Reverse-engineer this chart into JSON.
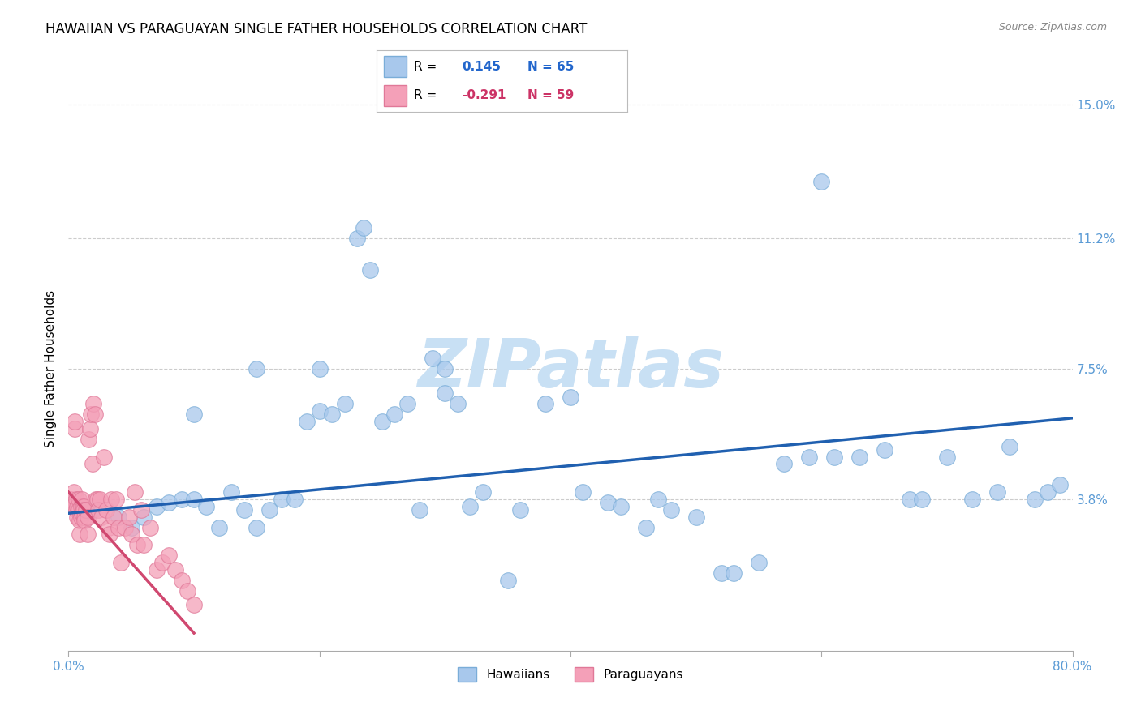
{
  "title": "HAWAIIAN VS PARAGUAYAN SINGLE FATHER HOUSEHOLDS CORRELATION CHART",
  "source": "Source: ZipAtlas.com",
  "ylabel": "Single Father Households",
  "xlim": [
    0.0,
    0.8
  ],
  "ylim": [
    -0.005,
    0.155
  ],
  "xticks": [
    0.0,
    0.2,
    0.4,
    0.6,
    0.8
  ],
  "xticklabels": [
    "0.0%",
    "",
    "",
    "",
    "80.0%"
  ],
  "yticks": [
    0.038,
    0.075,
    0.112,
    0.15
  ],
  "yticklabels": [
    "3.8%",
    "7.5%",
    "11.2%",
    "15.0%"
  ],
  "blue_color": "#A8C8EC",
  "blue_edge_color": "#7AADD8",
  "blue_line_color": "#2060B0",
  "pink_color": "#F4A0B8",
  "pink_edge_color": "#E07898",
  "pink_line_color": "#D04870",
  "background_color": "#FFFFFF",
  "grid_color": "#CCCCCC",
  "title_fontsize": 12,
  "source_fontsize": 9,
  "axis_label_fontsize": 11,
  "tick_fontsize": 11,
  "legend_fontsize": 11,
  "watermark_text": "ZIPatlas",
  "watermark_color": "#C8E0F4",
  "watermark_fontsize": 60,
  "hawaiian_x": [
    0.02,
    0.04,
    0.05,
    0.06,
    0.07,
    0.08,
    0.09,
    0.1,
    0.11,
    0.12,
    0.13,
    0.14,
    0.15,
    0.16,
    0.17,
    0.18,
    0.19,
    0.2,
    0.21,
    0.22,
    0.23,
    0.235,
    0.24,
    0.25,
    0.26,
    0.27,
    0.28,
    0.29,
    0.3,
    0.31,
    0.32,
    0.33,
    0.35,
    0.36,
    0.38,
    0.4,
    0.41,
    0.43,
    0.44,
    0.46,
    0.47,
    0.48,
    0.5,
    0.52,
    0.53,
    0.55,
    0.57,
    0.59,
    0.61,
    0.63,
    0.65,
    0.67,
    0.68,
    0.7,
    0.72,
    0.74,
    0.75,
    0.77,
    0.78,
    0.79,
    0.6,
    0.3,
    0.2,
    0.15,
    0.1
  ],
  "hawaiian_y": [
    0.035,
    0.033,
    0.03,
    0.033,
    0.036,
    0.037,
    0.038,
    0.038,
    0.036,
    0.03,
    0.04,
    0.035,
    0.03,
    0.035,
    0.038,
    0.038,
    0.06,
    0.063,
    0.062,
    0.065,
    0.112,
    0.115,
    0.103,
    0.06,
    0.062,
    0.065,
    0.035,
    0.078,
    0.075,
    0.065,
    0.036,
    0.04,
    0.015,
    0.035,
    0.065,
    0.067,
    0.04,
    0.037,
    0.036,
    0.03,
    0.038,
    0.035,
    0.033,
    0.017,
    0.017,
    0.02,
    0.048,
    0.05,
    0.05,
    0.05,
    0.052,
    0.038,
    0.038,
    0.05,
    0.038,
    0.04,
    0.053,
    0.038,
    0.04,
    0.042,
    0.128,
    0.068,
    0.075,
    0.075,
    0.062
  ],
  "paraguayan_x": [
    0.002,
    0.003,
    0.004,
    0.005,
    0.005,
    0.006,
    0.006,
    0.007,
    0.007,
    0.008,
    0.008,
    0.009,
    0.009,
    0.01,
    0.01,
    0.011,
    0.011,
    0.012,
    0.012,
    0.013,
    0.013,
    0.014,
    0.015,
    0.015,
    0.016,
    0.017,
    0.018,
    0.019,
    0.02,
    0.021,
    0.022,
    0.023,
    0.024,
    0.025,
    0.026,
    0.028,
    0.03,
    0.032,
    0.033,
    0.034,
    0.036,
    0.038,
    0.04,
    0.042,
    0.045,
    0.048,
    0.05,
    0.053,
    0.055,
    0.058,
    0.06,
    0.065,
    0.07,
    0.075,
    0.08,
    0.085,
    0.09,
    0.095,
    0.1
  ],
  "paraguayan_y": [
    0.038,
    0.036,
    0.04,
    0.058,
    0.06,
    0.038,
    0.035,
    0.036,
    0.033,
    0.038,
    0.035,
    0.032,
    0.028,
    0.036,
    0.033,
    0.038,
    0.034,
    0.036,
    0.035,
    0.033,
    0.032,
    0.035,
    0.033,
    0.028,
    0.055,
    0.058,
    0.062,
    0.048,
    0.065,
    0.062,
    0.038,
    0.038,
    0.035,
    0.038,
    0.033,
    0.05,
    0.035,
    0.03,
    0.028,
    0.038,
    0.033,
    0.038,
    0.03,
    0.02,
    0.03,
    0.033,
    0.028,
    0.04,
    0.025,
    0.035,
    0.025,
    0.03,
    0.018,
    0.02,
    0.022,
    0.018,
    0.015,
    0.012,
    0.008
  ],
  "blue_line_x0": 0.0,
  "blue_line_x1": 0.8,
  "blue_line_y0": 0.034,
  "blue_line_y1": 0.061,
  "pink_line_x0": 0.0,
  "pink_line_x1": 0.1,
  "pink_line_y0": 0.04,
  "pink_line_y1": 0.0
}
